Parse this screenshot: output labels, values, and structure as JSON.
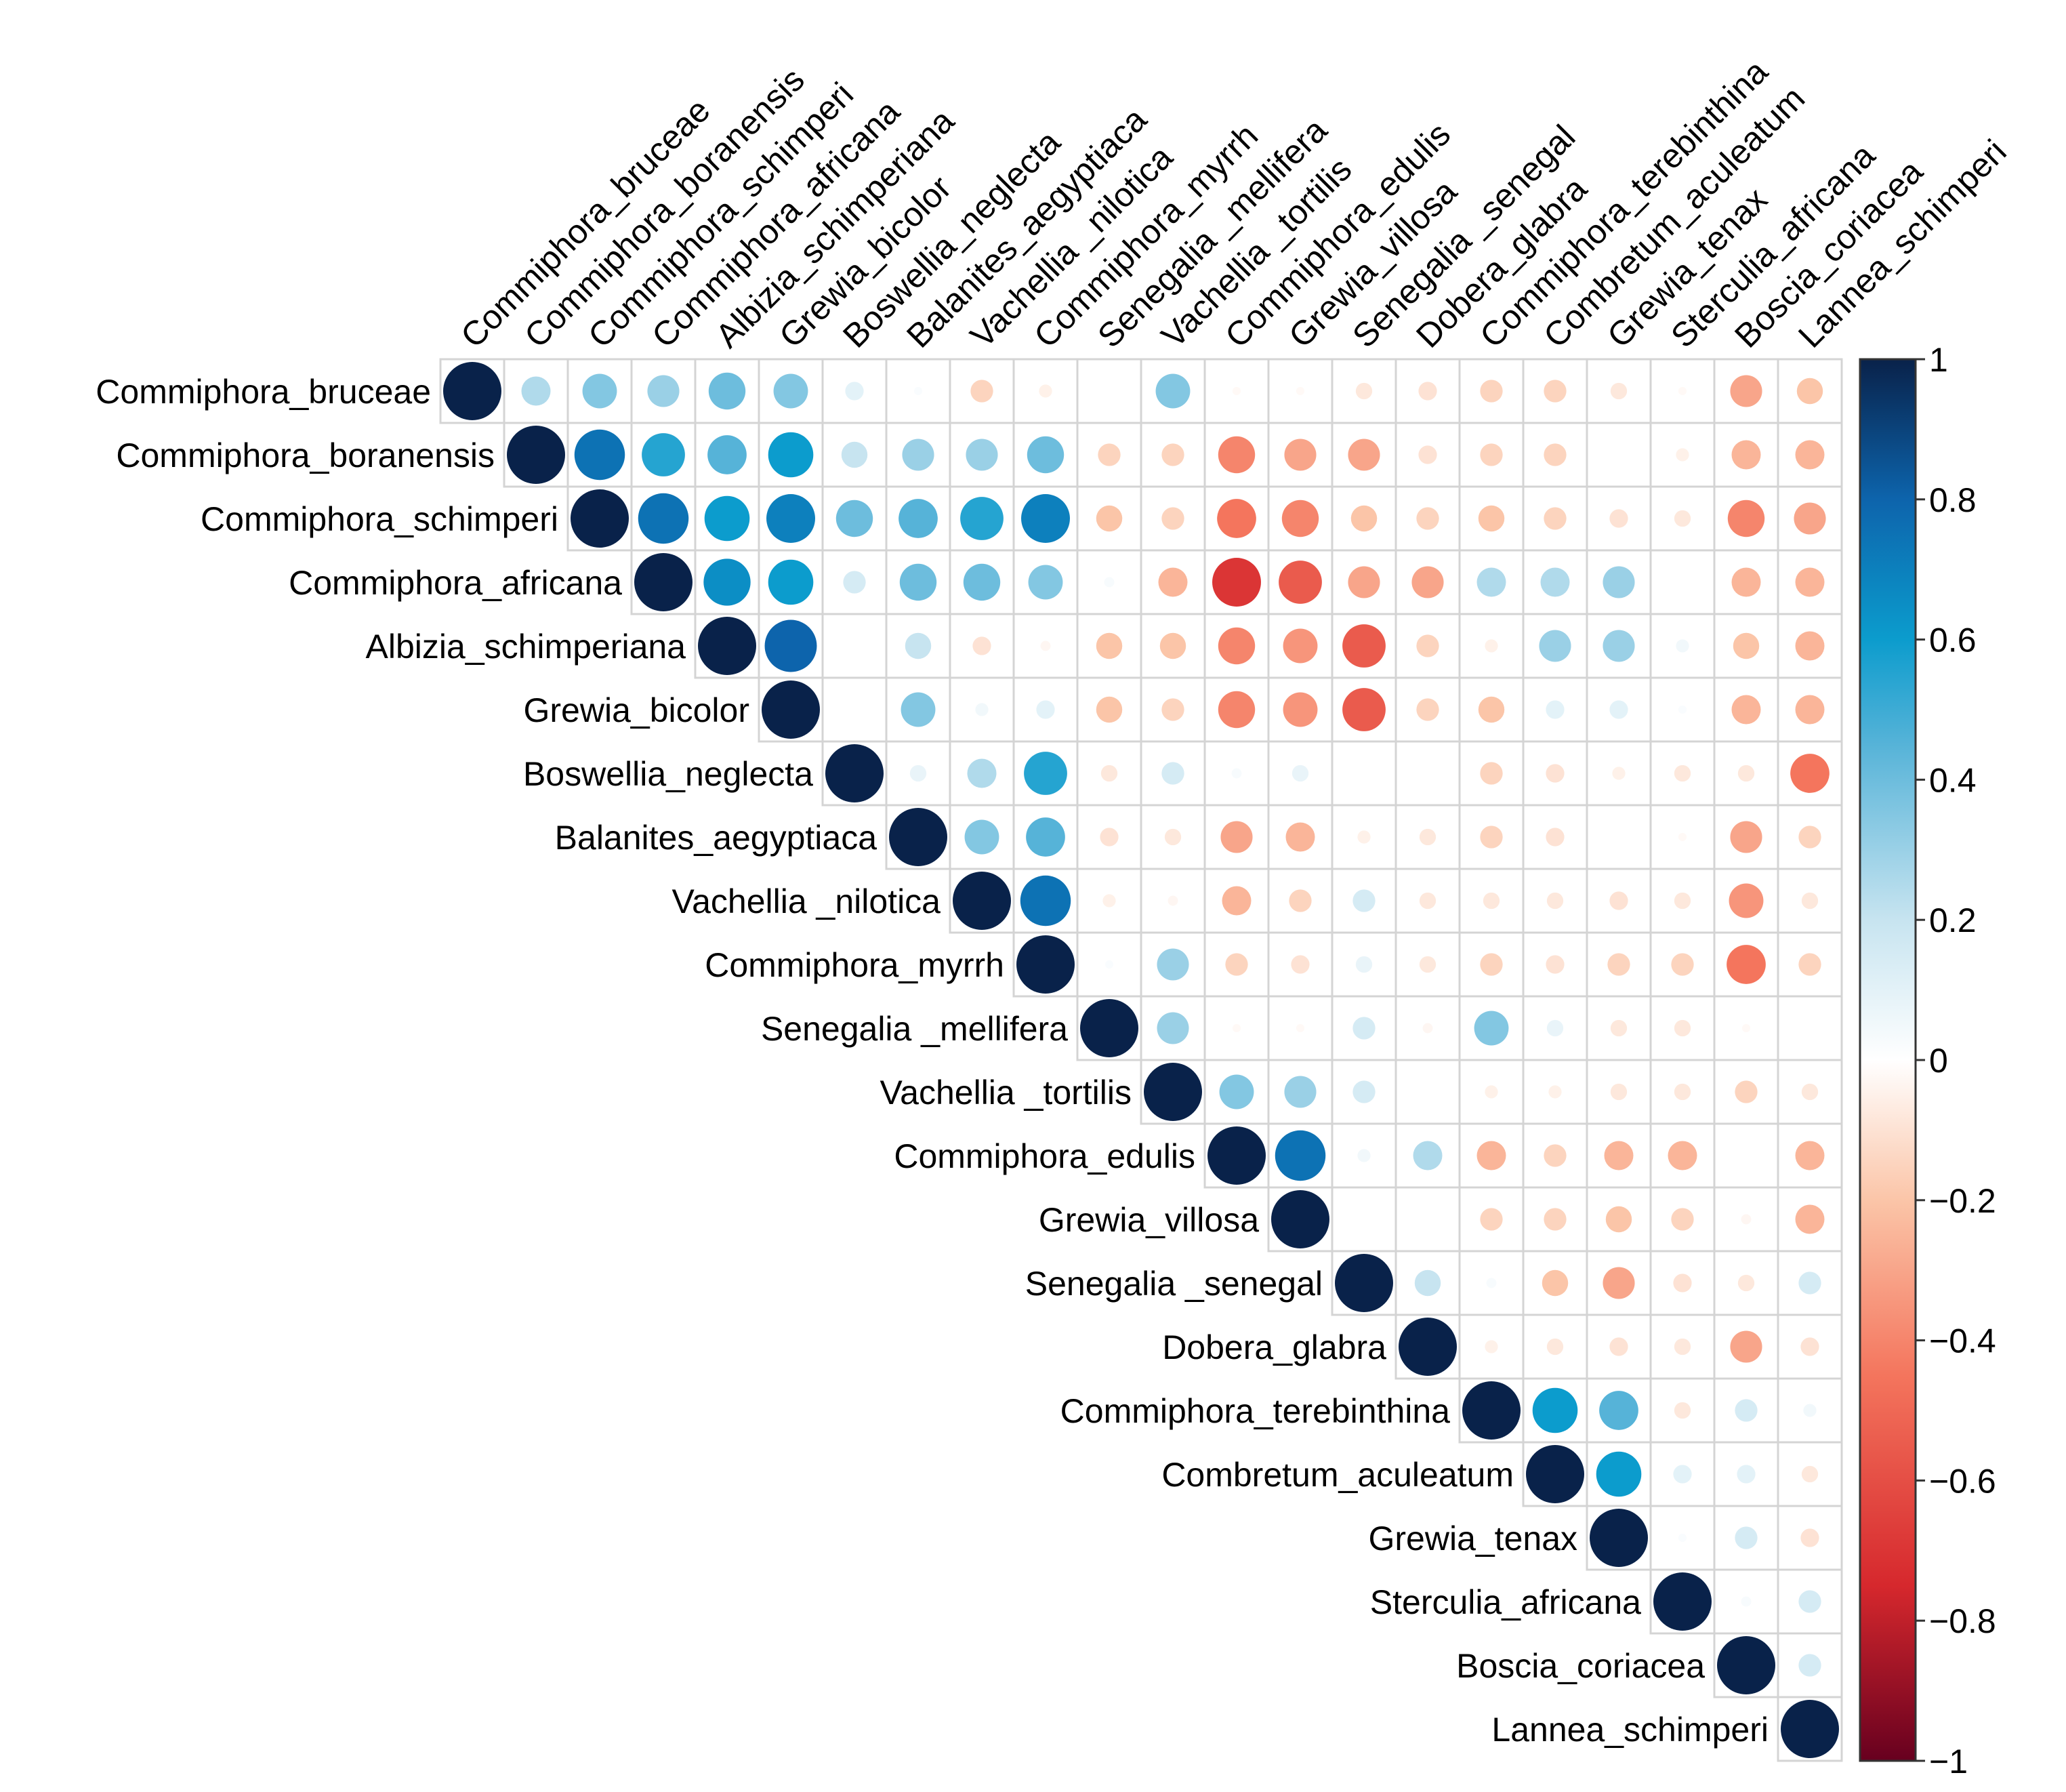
{
  "chart_data": {
    "type": "heatmap",
    "subtype": "correlation-upper-triangle-circles",
    "title": "",
    "xlabel": "",
    "ylabel": "",
    "labels": [
      "Commiphora_bruceae",
      "Commiphora_boranensis",
      "Commiphora_schimperi",
      "Commiphora_africana",
      "Albizia_schimperiana",
      "Grewia_bicolor",
      "Boswellia_neglecta",
      "Balanites_aegyptiaca",
      "Vachellia _nilotica",
      "Commiphora_myrrh",
      "Senegalia _mellifera",
      "Vachellia _tortilis",
      "Commiphora_edulis",
      "Grewia_villosa",
      "Senegalia _senegal",
      "Dobera_glabra",
      "Commiphora_terebinthina",
      "Combretum_aculeatum",
      "Grewia_tenax",
      "Sterculia_africana",
      "Boscia_coriacea",
      "Lannea_schimperi"
    ],
    "matrix": [
      [
        1,
        0.25,
        0.35,
        0.3,
        0.4,
        0.35,
        0.1,
        0.02,
        -0.15,
        -0.05,
        0,
        0.35,
        -0.02,
        -0.02,
        -0.08,
        -0.1,
        -0.15,
        -0.15,
        -0.08,
        -0.02,
        -0.3,
        -0.2
      ],
      [
        null,
        1,
        0.75,
        0.55,
        0.45,
        0.6,
        0.2,
        0.3,
        0.3,
        0.4,
        -0.15,
        -0.15,
        -0.4,
        -0.3,
        -0.3,
        -0.1,
        -0.15,
        -0.15,
        0,
        -0.05,
        -0.25,
        -0.25
      ],
      [
        null,
        null,
        1,
        0.75,
        0.6,
        0.7,
        0.4,
        0.45,
        0.55,
        0.7,
        -0.2,
        -0.15,
        -0.45,
        -0.4,
        -0.2,
        -0.15,
        -0.2,
        -0.15,
        -0.1,
        -0.08,
        -0.4,
        -0.3
      ],
      [
        null,
        null,
        null,
        1,
        0.65,
        0.6,
        0.15,
        0.4,
        0.4,
        0.35,
        0.03,
        -0.25,
        -0.7,
        -0.55,
        -0.3,
        -0.3,
        0.25,
        0.25,
        0.3,
        0,
        -0.25,
        -0.25
      ],
      [
        null,
        null,
        null,
        null,
        1,
        0.8,
        0,
        0.2,
        -0.1,
        -0.03,
        -0.2,
        -0.2,
        -0.4,
        -0.35,
        -0.55,
        -0.15,
        -0.05,
        0.3,
        0.3,
        0.05,
        -0.2,
        -0.25
      ],
      [
        null,
        null,
        null,
        null,
        null,
        1,
        0,
        0.35,
        0.05,
        0.1,
        -0.2,
        -0.15,
        -0.4,
        -0.35,
        -0.55,
        -0.15,
        -0.2,
        0.1,
        0.1,
        0.02,
        -0.25,
        -0.25
      ],
      [
        null,
        null,
        null,
        null,
        null,
        null,
        1,
        0.08,
        0.25,
        0.55,
        -0.08,
        0.15,
        0.03,
        0.08,
        0,
        0,
        -0.15,
        -0.1,
        -0.05,
        -0.08,
        -0.08,
        -0.45
      ],
      [
        null,
        null,
        null,
        null,
        null,
        null,
        null,
        1,
        0.35,
        0.45,
        -0.1,
        -0.08,
        -0.3,
        -0.25,
        -0.05,
        -0.08,
        -0.15,
        -0.1,
        0,
        -0.02,
        -0.3,
        -0.15
      ],
      [
        null,
        null,
        null,
        null,
        null,
        null,
        null,
        null,
        1,
        0.75,
        -0.05,
        -0.03,
        -0.25,
        -0.15,
        0.15,
        -0.08,
        -0.08,
        -0.08,
        -0.1,
        -0.08,
        -0.35,
        -0.08
      ],
      [
        null,
        null,
        null,
        null,
        null,
        null,
        null,
        null,
        null,
        1,
        0.02,
        0.3,
        -0.15,
        -0.1,
        0.08,
        -0.08,
        -0.15,
        -0.1,
        -0.15,
        -0.15,
        -0.45,
        -0.15
      ],
      [
        null,
        null,
        null,
        null,
        null,
        null,
        null,
        null,
        null,
        null,
        1,
        0.3,
        -0.02,
        -0.02,
        0.15,
        -0.03,
        0.35,
        0.08,
        -0.08,
        -0.08,
        -0.02,
        0
      ],
      [
        null,
        null,
        null,
        null,
        null,
        null,
        null,
        null,
        null,
        null,
        null,
        1,
        0.35,
        0.3,
        0.15,
        0,
        -0.05,
        -0.05,
        -0.08,
        -0.08,
        -0.15,
        -0.08
      ],
      [
        null,
        null,
        null,
        null,
        null,
        null,
        null,
        null,
        null,
        null,
        null,
        null,
        1,
        0.75,
        0.05,
        0.25,
        -0.25,
        -0.15,
        -0.25,
        -0.25,
        0,
        -0.25
      ],
      [
        null,
        null,
        null,
        null,
        null,
        null,
        null,
        null,
        null,
        null,
        null,
        null,
        null,
        1,
        0,
        0,
        -0.15,
        -0.15,
        -0.2,
        -0.15,
        -0.03,
        -0.25
      ],
      [
        null,
        null,
        null,
        null,
        null,
        null,
        null,
        null,
        null,
        null,
        null,
        null,
        null,
        null,
        1,
        0.2,
        0.03,
        -0.2,
        -0.3,
        -0.1,
        -0.08,
        0.15
      ],
      [
        null,
        null,
        null,
        null,
        null,
        null,
        null,
        null,
        null,
        null,
        null,
        null,
        null,
        null,
        null,
        1,
        -0.05,
        -0.08,
        -0.1,
        -0.08,
        -0.3,
        -0.1
      ],
      [
        null,
        null,
        null,
        null,
        null,
        null,
        null,
        null,
        null,
        null,
        null,
        null,
        null,
        null,
        null,
        null,
        1,
        0.6,
        0.45,
        -0.08,
        0.15,
        0.05
      ],
      [
        null,
        null,
        null,
        null,
        null,
        null,
        null,
        null,
        null,
        null,
        null,
        null,
        null,
        null,
        null,
        null,
        null,
        1,
        0.6,
        0.1,
        0.1,
        -0.08
      ],
      [
        null,
        null,
        null,
        null,
        null,
        null,
        null,
        null,
        null,
        null,
        null,
        null,
        null,
        null,
        null,
        null,
        null,
        null,
        1,
        0.02,
        0.15,
        -0.1
      ],
      [
        null,
        null,
        null,
        null,
        null,
        null,
        null,
        null,
        null,
        null,
        null,
        null,
        null,
        null,
        null,
        null,
        null,
        null,
        null,
        1,
        0.03,
        0.15
      ],
      [
        null,
        null,
        null,
        null,
        null,
        null,
        null,
        null,
        null,
        null,
        null,
        null,
        null,
        null,
        null,
        null,
        null,
        null,
        null,
        null,
        1,
        0.15
      ],
      [
        null,
        null,
        null,
        null,
        null,
        null,
        null,
        null,
        null,
        null,
        null,
        null,
        null,
        null,
        null,
        null,
        null,
        null,
        null,
        null,
        null,
        1
      ]
    ],
    "color_scale": {
      "domain": [
        -1,
        1
      ],
      "ticks": [
        "1",
        "0.8",
        "0.6",
        "0.4",
        "0.2",
        "0",
        "−0.2",
        "−0.4",
        "−0.6",
        "−0.8",
        "−1"
      ],
      "stops": [
        {
          "value": -1,
          "color": "#67001F"
        },
        {
          "value": -0.75,
          "color": "#D6282D"
        },
        {
          "value": -0.45,
          "color": "#F4755D"
        },
        {
          "value": -0.2,
          "color": "#FBC5A8"
        },
        {
          "value": 0,
          "color": "#FFFFFF"
        },
        {
          "value": 0.2,
          "color": "#C7E4F0"
        },
        {
          "value": 0.45,
          "color": "#56B3D8"
        },
        {
          "value": 0.6,
          "color": "#0C9CCD"
        },
        {
          "value": 0.8,
          "color": "#0D64AC"
        },
        {
          "value": 1,
          "color": "#09224A"
        }
      ]
    },
    "legend": "right",
    "grid": true
  }
}
